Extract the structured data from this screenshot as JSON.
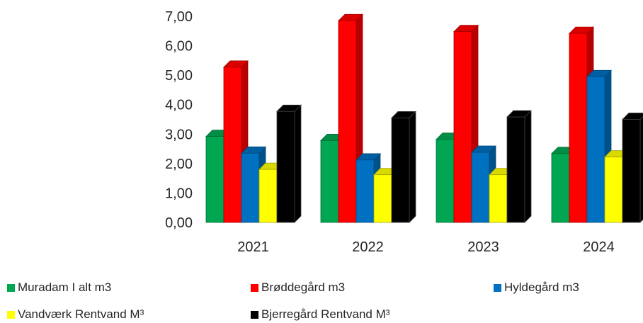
{
  "chart_data": {
    "type": "bar",
    "style": "3d-clustered-column",
    "categories": [
      "2021",
      "2022",
      "2023",
      "2024"
    ],
    "series": [
      {
        "name": "Muradam I alt m3",
        "color": "#00a651",
        "values": [
          2.92,
          2.78,
          2.82,
          2.34
        ]
      },
      {
        "name": "Brøddegård m3",
        "color": "#ff0000",
        "values": [
          5.27,
          6.85,
          6.48,
          6.42
        ]
      },
      {
        "name": "Hyldegård m3",
        "color": "#0070c0",
        "values": [
          2.35,
          2.12,
          2.38,
          4.95
        ]
      },
      {
        "name": "Vandværk Rentvand M³",
        "color": "#ffff00",
        "values": [
          1.8,
          1.62,
          1.62,
          2.22
        ]
      },
      {
        "name": "Bjerregård Rentvand M³",
        "color": "#000000",
        "values": [
          3.77,
          3.55,
          3.58,
          3.5
        ]
      }
    ],
    "ylim": [
      0,
      7
    ],
    "yticks": [
      "0,00",
      "1,00",
      "2,00",
      "3,00",
      "4,00",
      "5,00",
      "6,00",
      "7,00"
    ],
    "grid": false,
    "legend_position": "bottom",
    "title": "",
    "xlabel": "",
    "ylabel": ""
  }
}
